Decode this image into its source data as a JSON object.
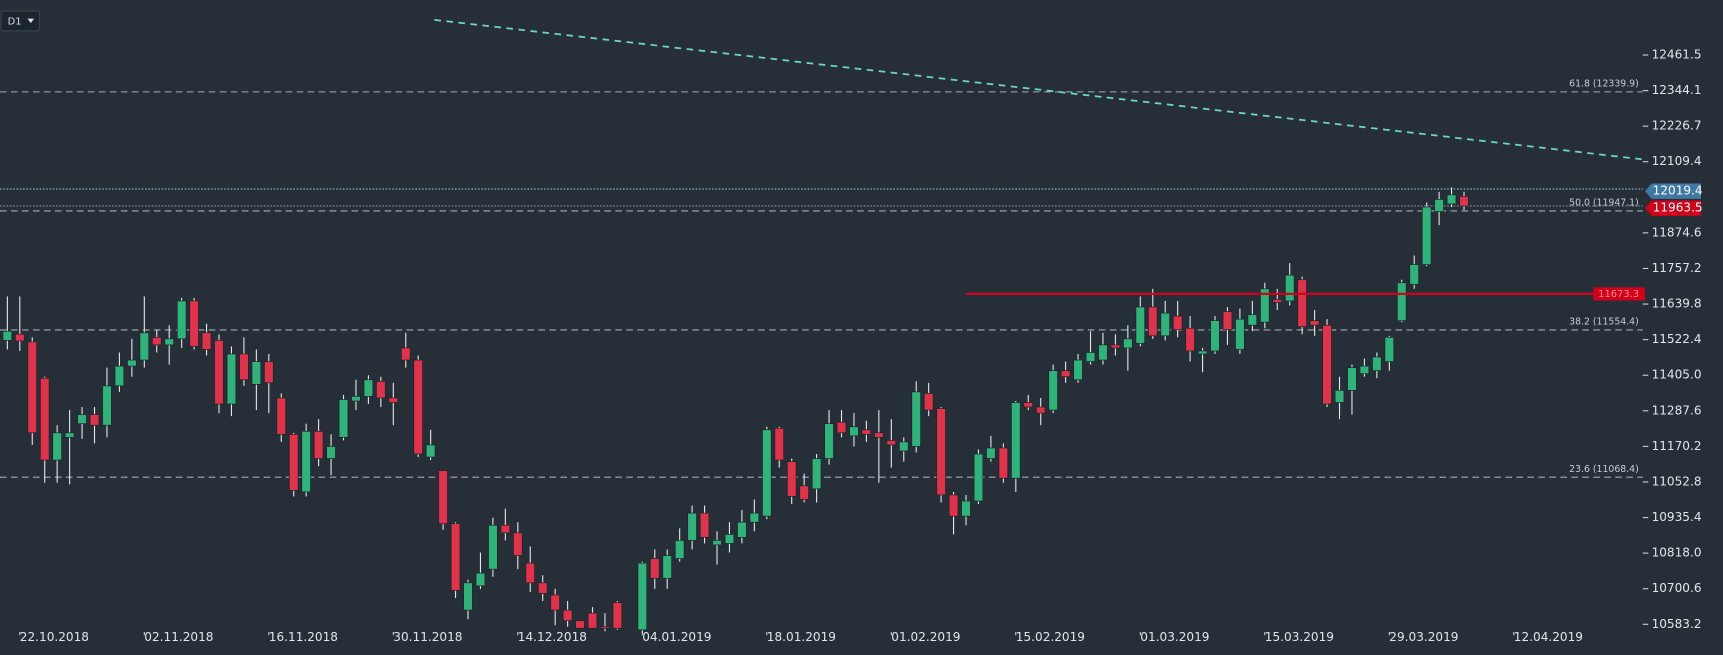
{
  "chart_data": {
    "type": "candlestick",
    "timeframe": "D1",
    "categories": [
      null,
      "22.10.2018",
      null,
      null,
      null,
      null,
      null,
      null,
      null,
      null,
      null,
      "02.11.2018",
      null,
      null,
      null,
      null,
      null,
      null,
      null,
      null,
      null,
      "16.11.2018",
      null,
      null,
      null,
      null,
      null,
      null,
      null,
      null,
      null,
      "30.11.2018",
      null,
      null,
      null,
      null,
      null,
      null,
      null,
      null,
      null,
      "14.12.2018",
      null,
      null,
      null,
      null,
      null,
      null,
      null,
      null,
      null,
      "04.01.2019",
      null,
      null,
      null,
      null,
      null,
      null,
      null,
      null,
      null,
      "18.01.2019",
      null,
      null,
      null,
      null,
      null,
      null,
      null,
      null,
      null,
      "01.02.2019",
      null,
      null,
      null,
      null,
      null,
      null,
      null,
      null,
      null,
      "15.02.2019",
      null,
      null,
      null,
      null,
      null,
      null,
      null,
      null,
      null,
      "01.03.2019",
      null,
      null,
      null,
      null,
      null,
      null,
      null,
      null,
      null,
      "15.03.2019",
      null,
      null,
      null,
      null,
      null,
      null,
      null,
      null,
      null,
      "29.03.2019",
      null,
      null,
      null,
      null,
      null,
      null,
      null,
      null,
      null,
      "12.04.2019"
    ],
    "open": [
      11520,
      11540,
      11515,
      11395,
      11125,
      11200,
      11245,
      11275,
      11240,
      11370,
      11435,
      11455,
      11530,
      11505,
      11525,
      11650,
      11545,
      11520,
      11310,
      11475,
      11375,
      11450,
      11330,
      11210,
      11020,
      11220,
      11130,
      11200,
      11320,
      11335,
      11385,
      11330,
      11495,
      11455,
      11135,
      11090,
      10915,
      10630,
      10710,
      10765,
      10910,
      10885,
      10785,
      10720,
      10680,
      10630,
      10595,
      10620,
      10575,
      10655,
      null,
      10565,
      10800,
      10735,
      10800,
      10860,
      10950,
      10845,
      10850,
      10870,
      10920,
      10940,
      11230,
      11120,
      11040,
      11030,
      11130,
      11250,
      11205,
      11225,
      11215,
      11190,
      11155,
      11170,
      11345,
      11295,
      11010,
      10940,
      10990,
      11130,
      11165,
      11065,
      11315,
      11300,
      11290,
      11420,
      11390,
      11450,
      11455,
      11505,
      11495,
      11510,
      11630,
      11535,
      11600,
      11560,
      11475,
      11485,
      11615,
      11490,
      11570,
      11580,
      11655,
      11650,
      11720,
      11585,
      11570,
      11315,
      11355,
      11410,
      11420,
      11450,
      11585,
      11705,
      11770,
      11945,
      11970,
      11995,
      null,
      null,
      null,
      null
    ],
    "high": [
      11665,
      11665,
      11530,
      11400,
      11240,
      11290,
      11300,
      11300,
      11430,
      11480,
      11525,
      11665,
      11555,
      11570,
      11660,
      11660,
      11575,
      11540,
      11500,
      11530,
      11490,
      11475,
      11345,
      11215,
      11245,
      11260,
      11210,
      11340,
      11390,
      11405,
      11400,
      11380,
      11545,
      11470,
      11225,
      11090,
      10920,
      10730,
      10820,
      10935,
      10965,
      10920,
      10840,
      10745,
      10700,
      10660,
      10595,
      10640,
      10620,
      10660,
      null,
      10790,
      10830,
      10830,
      10900,
      10975,
      10975,
      10890,
      10920,
      10960,
      10995,
      11235,
      11235,
      11130,
      11080,
      11145,
      11290,
      11290,
      11280,
      11255,
      11290,
      11260,
      11200,
      11385,
      11380,
      11300,
      11020,
      11010,
      11160,
      11205,
      11180,
      11320,
      11340,
      11330,
      11440,
      11450,
      11475,
      11550,
      11545,
      11540,
      11570,
      11665,
      11690,
      11650,
      11650,
      11600,
      11495,
      11600,
      11630,
      11625,
      11650,
      11710,
      11690,
      11775,
      11730,
      11620,
      11590,
      11400,
      11440,
      11460,
      11480,
      11535,
      11720,
      11800,
      11975,
      12010,
      12025,
      12010,
      null,
      null,
      null,
      null
    ],
    "low": [
      11490,
      11485,
      11175,
      11050,
      11050,
      11045,
      11195,
      11180,
      11200,
      11350,
      11400,
      11430,
      11480,
      11440,
      11495,
      11490,
      11470,
      11280,
      11270,
      11370,
      11290,
      11280,
      11185,
      11005,
      11005,
      11105,
      11075,
      11190,
      11290,
      11310,
      11300,
      11240,
      11430,
      11135,
      11125,
      10895,
      10670,
      10600,
      10700,
      10740,
      10860,
      10765,
      10690,
      10660,
      10580,
      10575,
      10570,
      10570,
      10560,
      10565,
      null,
      10555,
      10700,
      10700,
      10790,
      10830,
      10850,
      10780,
      10820,
      10850,
      10890,
      10930,
      11100,
      10980,
      10985,
      10985,
      11110,
      11200,
      11170,
      11185,
      11050,
      11100,
      11120,
      11150,
      11270,
      10985,
      10880,
      10910,
      10980,
      11120,
      11050,
      11020,
      11290,
      11240,
      11280,
      11380,
      11380,
      11440,
      11440,
      11470,
      11420,
      11500,
      11525,
      11520,
      11530,
      11450,
      11415,
      11475,
      11505,
      11475,
      11550,
      11560,
      11620,
      11635,
      11540,
      11535,
      11300,
      11260,
      11275,
      11400,
      11395,
      11420,
      11580,
      11690,
      11765,
      11900,
      11960,
      11950,
      null,
      null,
      null,
      null
    ],
    "close": [
      11550,
      11518,
      11215,
      11125,
      11215,
      11215,
      11275,
      11240,
      11370,
      11435,
      11455,
      11545,
      11505,
      11525,
      11650,
      11500,
      11490,
      11310,
      11475,
      11390,
      11450,
      11380,
      11210,
      11025,
      11220,
      11130,
      11170,
      11325,
      11335,
      11390,
      11330,
      11315,
      11455,
      11145,
      11175,
      10915,
      10695,
      10720,
      10752,
      10910,
      10885,
      10810,
      10720,
      10685,
      10630,
      10595,
      10570,
      10570,
      10570,
      10570,
      null,
      10785,
      10735,
      10810,
      10860,
      10950,
      10870,
      10860,
      10880,
      10920,
      10950,
      11225,
      11125,
      11005,
      10995,
      11130,
      11245,
      11215,
      11235,
      11210,
      11200,
      11175,
      11185,
      11350,
      11290,
      11010,
      10940,
      10990,
      11145,
      11165,
      11065,
      11315,
      11300,
      11280,
      11420,
      11400,
      11455,
      11480,
      11505,
      11495,
      11525,
      11630,
      11535,
      11610,
      11555,
      11485,
      11485,
      11585,
      11555,
      11590,
      11605,
      11690,
      11645,
      11735,
      11565,
      11570,
      11310,
      11355,
      11430,
      11435,
      11465,
      11530,
      11710,
      11770,
      11960,
      11985,
      12000,
      11963.5,
      null,
      null,
      null,
      null
    ],
    "up_color": "#2fb37a",
    "down_color": "#e0324b",
    "ylim": [
      10558,
      12643
    ],
    "yticks": [
      12461.5,
      12344.1,
      12226.7,
      12109.4,
      11874.6,
      11757.2,
      11639.8,
      11522.4,
      {
        "value": 11405,
        "label": "11405.0"
      },
      11287.6,
      11170.2,
      11052.8,
      10935.4,
      {
        "value": 10818,
        "label": "10818.0"
      },
      10700.6,
      10583.2
    ],
    "fib_levels": [
      {
        "label": "61.8 (12339.9)",
        "value": 12339.9
      },
      {
        "label": "50.0 (11947.1)",
        "value": 11947.1
      },
      {
        "label": "38.2 (11554.4)",
        "value": 11554.4
      },
      {
        "label": "23.6 (11068.4)",
        "value": 11068.4
      }
    ],
    "horizontal_line": {
      "value": 11673.3,
      "color": "#d0021b"
    },
    "trendline": {
      "x": [
        34.3,
        131.4
      ],
      "y": [
        12577.5,
        12117
      ],
      "color": "#6fd6c6"
    },
    "price_tags": [
      {
        "value": 12019.4,
        "color": "#3f78a3"
      },
      {
        "value": 11963.5,
        "color": "#d0021b"
      }
    ]
  }
}
